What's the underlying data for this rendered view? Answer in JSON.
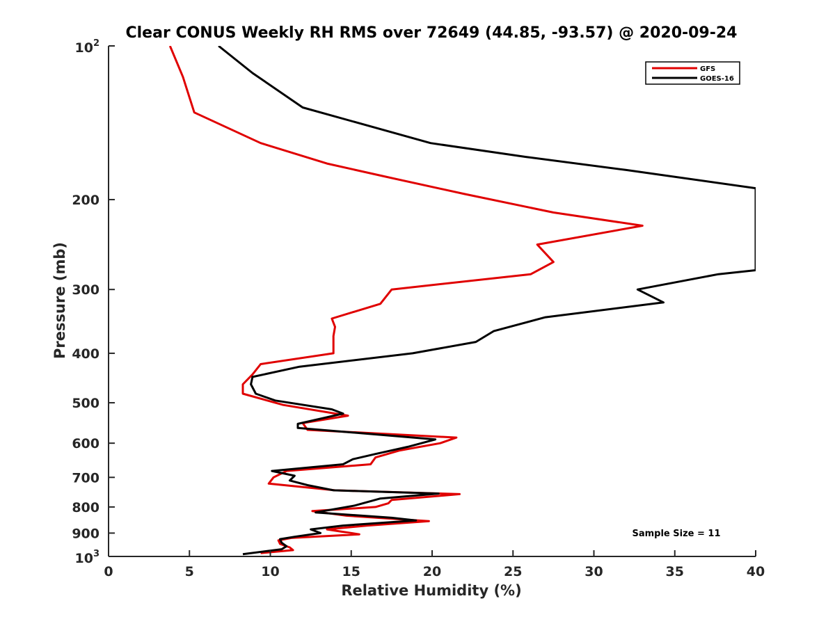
{
  "chart_data": {
    "type": "line",
    "title": "Clear CONUS Weekly RH RMS over 72649 (44.85, -93.57) @ 2020-09-24",
    "xlabel": "Relative Humidity (%)",
    "ylabel": "Pressure (mb)",
    "xlim": [
      0,
      40
    ],
    "ylim": [
      100,
      1000
    ],
    "yscale": "log",
    "y_reversed": true,
    "grid": false,
    "legend_position": "top-right",
    "x_ticks": [
      0,
      5,
      10,
      15,
      20,
      25,
      30,
      35,
      40
    ],
    "y_ticks": [
      {
        "value": 100,
        "base": "10",
        "exp": "2"
      },
      {
        "value": 200,
        "label": "200"
      },
      {
        "value": 300,
        "label": "300"
      },
      {
        "value": 400,
        "label": "400"
      },
      {
        "value": 500,
        "label": "500"
      },
      {
        "value": 600,
        "label": "600"
      },
      {
        "value": 700,
        "label": "700"
      },
      {
        "value": 800,
        "label": "800"
      },
      {
        "value": 900,
        "label": "900"
      },
      {
        "value": 1000,
        "base": "10",
        "exp": "3"
      }
    ],
    "annotation": "Sample Size = 11",
    "series": [
      {
        "name": "GFS",
        "color": "#e00000",
        "points": [
          [
            3.8,
            100
          ],
          [
            4.6,
            115
          ],
          [
            5.3,
            135
          ],
          [
            9.4,
            155
          ],
          [
            13.5,
            170
          ],
          [
            17.0,
            180
          ],
          [
            22.0,
            195
          ],
          [
            27.5,
            212
          ],
          [
            33.0,
            225
          ],
          [
            26.5,
            245
          ],
          [
            27.5,
            265
          ],
          [
            26.1,
            280
          ],
          [
            17.5,
            300
          ],
          [
            16.8,
            320
          ],
          [
            13.8,
            342
          ],
          [
            14.0,
            355
          ],
          [
            13.9,
            370
          ],
          [
            13.9,
            400
          ],
          [
            9.4,
            420
          ],
          [
            8.9,
            440
          ],
          [
            8.3,
            460
          ],
          [
            8.3,
            480
          ],
          [
            10.8,
            505
          ],
          [
            14.8,
            530
          ],
          [
            12.0,
            548
          ],
          [
            12.3,
            565
          ],
          [
            21.5,
            585
          ],
          [
            20.5,
            600
          ],
          [
            18.0,
            620
          ],
          [
            16.5,
            640
          ],
          [
            16.2,
            660
          ],
          [
            11.0,
            680
          ],
          [
            10.2,
            700
          ],
          [
            9.9,
            720
          ],
          [
            14.0,
            742
          ],
          [
            21.7,
            755
          ],
          [
            17.5,
            775
          ],
          [
            17.3,
            787
          ],
          [
            16.5,
            800
          ],
          [
            12.6,
            815
          ],
          [
            14.7,
            832
          ],
          [
            19.8,
            853
          ],
          [
            16.0,
            870
          ],
          [
            13.5,
            885
          ],
          [
            15.5,
            905
          ],
          [
            11.3,
            920
          ],
          [
            10.5,
            930
          ],
          [
            10.6,
            945
          ],
          [
            11.2,
            960
          ],
          [
            11.4,
            972
          ],
          [
            9.4,
            985
          ]
        ]
      },
      {
        "name": "GOES-16",
        "color": "#000000",
        "points": [
          [
            6.8,
            100
          ],
          [
            8.9,
            113
          ],
          [
            12.0,
            132
          ],
          [
            19.9,
            155
          ],
          [
            25.8,
            165
          ],
          [
            32.0,
            175
          ],
          [
            40.0,
            190
          ],
          [
            40.0,
            275
          ],
          [
            37.7,
            280
          ],
          [
            32.7,
            300
          ],
          [
            34.3,
            318
          ],
          [
            27.0,
            340
          ],
          [
            23.8,
            362
          ],
          [
            22.7,
            380
          ],
          [
            18.8,
            400
          ],
          [
            11.8,
            425
          ],
          [
            8.9,
            445
          ],
          [
            8.8,
            460
          ],
          [
            9.1,
            480
          ],
          [
            10.3,
            495
          ],
          [
            13.8,
            515
          ],
          [
            14.5,
            525
          ],
          [
            11.7,
            550
          ],
          [
            11.7,
            560
          ],
          [
            20.2,
            590
          ],
          [
            18.5,
            610
          ],
          [
            16.5,
            630
          ],
          [
            15.1,
            645
          ],
          [
            14.5,
            660
          ],
          [
            10.1,
            680
          ],
          [
            11.5,
            695
          ],
          [
            11.2,
            710
          ],
          [
            12.3,
            725
          ],
          [
            13.9,
            742
          ],
          [
            20.4,
            753
          ],
          [
            16.8,
            770
          ],
          [
            15.2,
            795
          ],
          [
            12.8,
            820
          ],
          [
            17.5,
            840
          ],
          [
            19.0,
            850
          ],
          [
            14.5,
            870
          ],
          [
            12.5,
            885
          ],
          [
            13.1,
            900
          ],
          [
            11.5,
            915
          ],
          [
            10.6,
            925
          ],
          [
            10.7,
            940
          ],
          [
            11.0,
            955
          ],
          [
            10.7,
            968
          ],
          [
            8.3,
            990
          ]
        ]
      }
    ]
  }
}
